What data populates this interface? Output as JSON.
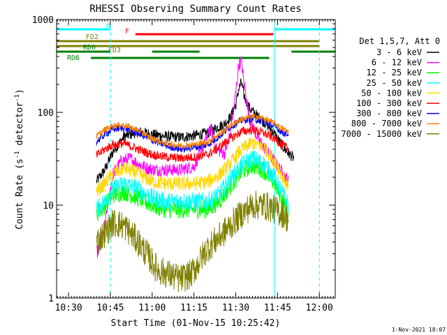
{
  "chart_data": {
    "type": "line",
    "title": "RHESSI Observing Summary Count Rates",
    "xlabel": "Start Time (01-Nov-15 10:25:42)",
    "ylabel_main": "Count Rate (s",
    "ylabel_sup1": "-1",
    "ylabel_mid": " detector",
    "ylabel_sup2": "-1",
    "ylabel_end": ")",
    "y_scale": "log",
    "ylim": [
      1,
      1000
    ],
    "xlim_minutes": [
      25.7,
      125.7
    ],
    "x_ticks": [
      {
        "label": "10:30",
        "minute": 30
      },
      {
        "label": "10:45",
        "minute": 45
      },
      {
        "label": "11:00",
        "minute": 60
      },
      {
        "label": "11:15",
        "minute": 75
      },
      {
        "label": "11:30",
        "minute": 90
      },
      {
        "label": "11:45",
        "minute": 105
      },
      {
        "label": "12:00",
        "minute": 120
      }
    ],
    "y_ticks": [
      {
        "label": "1",
        "value": 1
      },
      {
        "label": "10",
        "value": 10
      },
      {
        "label": "100",
        "value": 100
      },
      {
        "label": "1000",
        "value": 1000
      }
    ],
    "legend_header": "Det 1,5,7, Att 0",
    "series": [
      {
        "name": "3 - 6 keV",
        "color": "#000000",
        "points": [
          [
            40,
            18
          ],
          [
            43,
            24
          ],
          [
            46,
            38
          ],
          [
            50,
            55
          ],
          [
            55,
            62
          ],
          [
            60,
            58
          ],
          [
            65,
            55
          ],
          [
            70,
            54
          ],
          [
            75,
            56
          ],
          [
            80,
            60
          ],
          [
            83,
            68
          ],
          [
            86,
            75
          ],
          [
            88,
            88
          ],
          [
            90,
            120
          ],
          [
            91,
            175
          ],
          [
            92,
            210
          ],
          [
            93,
            150
          ],
          [
            95,
            110
          ],
          [
            98,
            90
          ],
          [
            101,
            75
          ],
          [
            104,
            58
          ],
          [
            107,
            42
          ],
          [
            109,
            36
          ],
          [
            111,
            32
          ]
        ]
      },
      {
        "name": "6 - 12 keV",
        "color": "#ff00ff",
        "points": [
          [
            40,
            3
          ],
          [
            42,
            4
          ],
          [
            44,
            10
          ],
          [
            46,
            22
          ],
          [
            49,
            30
          ],
          [
            52,
            32
          ],
          [
            55,
            28
          ],
          [
            58,
            25
          ],
          [
            61,
            24
          ],
          [
            65,
            24
          ],
          [
            70,
            24
          ],
          [
            75,
            26
          ],
          [
            79,
            48
          ],
          [
            81,
            68
          ],
          [
            83,
            40
          ],
          [
            86,
            36
          ],
          [
            88,
            60
          ],
          [
            90,
            160
          ],
          [
            91,
            320
          ],
          [
            92,
            360
          ],
          [
            93,
            200
          ],
          [
            95,
            85
          ],
          [
            98,
            52
          ],
          [
            102,
            35
          ],
          [
            106,
            24
          ],
          [
            109,
            18
          ]
        ]
      },
      {
        "name": "12 - 25 keV",
        "color": "#00ff00",
        "points": [
          [
            40,
            8
          ],
          [
            43,
            10
          ],
          [
            46,
            13
          ],
          [
            50,
            14
          ],
          [
            55,
            12
          ],
          [
            60,
            10
          ],
          [
            65,
            9
          ],
          [
            70,
            9
          ],
          [
            75,
            9
          ],
          [
            80,
            9
          ],
          [
            84,
            11
          ],
          [
            88,
            16
          ],
          [
            92,
            23
          ],
          [
            96,
            27
          ],
          [
            100,
            24
          ],
          [
            104,
            17
          ],
          [
            107,
            11
          ],
          [
            109,
            8
          ]
        ]
      },
      {
        "name": "25 - 50 keV",
        "color": "#00ffff",
        "points": [
          [
            40,
            9
          ],
          [
            43,
            11
          ],
          [
            46,
            15
          ],
          [
            50,
            17
          ],
          [
            55,
            15
          ],
          [
            60,
            12
          ],
          [
            65,
            11
          ],
          [
            70,
            11
          ],
          [
            75,
            11
          ],
          [
            80,
            11
          ],
          [
            84,
            13
          ],
          [
            88,
            19
          ],
          [
            92,
            27
          ],
          [
            96,
            32
          ],
          [
            100,
            28
          ],
          [
            104,
            20
          ],
          [
            107,
            13
          ],
          [
            109,
            10
          ]
        ]
      },
      {
        "name": "50 - 100 keV",
        "color": "#ffd700",
        "points": [
          [
            40,
            14
          ],
          [
            43,
            17
          ],
          [
            46,
            22
          ],
          [
            50,
            25
          ],
          [
            55,
            22
          ],
          [
            60,
            18
          ],
          [
            65,
            17
          ],
          [
            70,
            17
          ],
          [
            75,
            17
          ],
          [
            80,
            18
          ],
          [
            84,
            21
          ],
          [
            88,
            28
          ],
          [
            92,
            40
          ],
          [
            96,
            47
          ],
          [
            100,
            42
          ],
          [
            104,
            30
          ],
          [
            107,
            20
          ],
          [
            109,
            15
          ]
        ]
      },
      {
        "name": "100 - 300 keV",
        "color": "#ff0000",
        "points": [
          [
            40,
            34
          ],
          [
            43,
            40
          ],
          [
            46,
            45
          ],
          [
            50,
            46
          ],
          [
            55,
            40
          ],
          [
            60,
            35
          ],
          [
            65,
            33
          ],
          [
            70,
            32
          ],
          [
            75,
            33
          ],
          [
            80,
            35
          ],
          [
            84,
            42
          ],
          [
            88,
            52
          ],
          [
            92,
            62
          ],
          [
            96,
            65
          ],
          [
            100,
            60
          ],
          [
            104,
            52
          ],
          [
            107,
            44
          ],
          [
            109,
            40
          ]
        ]
      },
      {
        "name": "300 - 800 keV",
        "color": "#0000ff",
        "points": [
          [
            40,
            48
          ],
          [
            43,
            58
          ],
          [
            46,
            66
          ],
          [
            50,
            68
          ],
          [
            55,
            60
          ],
          [
            60,
            50
          ],
          [
            65,
            44
          ],
          [
            70,
            40
          ],
          [
            75,
            42
          ],
          [
            80,
            45
          ],
          [
            84,
            55
          ],
          [
            88,
            70
          ],
          [
            92,
            82
          ],
          [
            96,
            86
          ],
          [
            100,
            80
          ],
          [
            104,
            70
          ],
          [
            107,
            60
          ],
          [
            109,
            58
          ]
        ]
      },
      {
        "name": "800 - 7000 keV",
        "color": "#ff8000",
        "points": [
          [
            40,
            55
          ],
          [
            43,
            65
          ],
          [
            46,
            72
          ],
          [
            50,
            73
          ],
          [
            55,
            64
          ],
          [
            60,
            52
          ],
          [
            65,
            46
          ],
          [
            70,
            44
          ],
          [
            75,
            45
          ],
          [
            80,
            48
          ],
          [
            84,
            58
          ],
          [
            88,
            72
          ],
          [
            92,
            85
          ],
          [
            96,
            90
          ],
          [
            100,
            86
          ],
          [
            104,
            76
          ],
          [
            107,
            66
          ],
          [
            109,
            62
          ]
        ]
      },
      {
        "name": "7000 - 15000 keV",
        "color": "#808000",
        "points": [
          [
            40,
            4
          ],
          [
            43,
            5
          ],
          [
            46,
            6.5
          ],
          [
            50,
            6
          ],
          [
            55,
            4
          ],
          [
            58,
            3
          ],
          [
            62,
            2
          ],
          [
            66,
            1.8
          ],
          [
            70,
            1.6
          ],
          [
            74,
            1.8
          ],
          [
            77,
            2.5
          ],
          [
            80,
            3.5
          ],
          [
            84,
            4.5
          ],
          [
            88,
            6
          ],
          [
            92,
            8
          ],
          [
            96,
            10
          ],
          [
            100,
            10
          ],
          [
            104,
            9
          ],
          [
            107,
            8
          ],
          [
            109,
            7
          ]
        ]
      }
    ],
    "flags": [
      {
        "label": "N",
        "color": "#00ffff",
        "segments": [
          [
            25.7,
            45
          ],
          [
            104,
            125.7
          ]
        ]
      },
      {
        "label": "F",
        "color": "#ff0000",
        "segments": [
          [
            54,
            103.5
          ]
        ]
      },
      {
        "label": "FD2",
        "color": "#808000",
        "segments": [
          [
            25.7,
            120
          ]
        ]
      },
      {
        "label": "FD3",
        "color": "#808000",
        "segments": [
          [
            25.7,
            120
          ]
        ]
      },
      {
        "label": "RD0",
        "color": "#008000",
        "segments": [
          [
            25.7,
            45
          ],
          [
            60,
            77
          ],
          [
            110,
            125.7
          ]
        ]
      },
      {
        "label": "RD6",
        "color": "#008000",
        "segments": [
          [
            38,
            102
          ]
        ]
      }
    ],
    "vlines": [
      {
        "minute": 25.7,
        "style": "solid",
        "color": "#00ffff"
      },
      {
        "minute": 45,
        "style": "dashed",
        "color": "#00ffff"
      },
      {
        "minute": 104,
        "style": "solid",
        "color": "#00ffff"
      },
      {
        "minute": 120,
        "style": "dashed",
        "color": "#00ffff"
      }
    ]
  },
  "footer_date": "1-Nov-2021 18:07"
}
